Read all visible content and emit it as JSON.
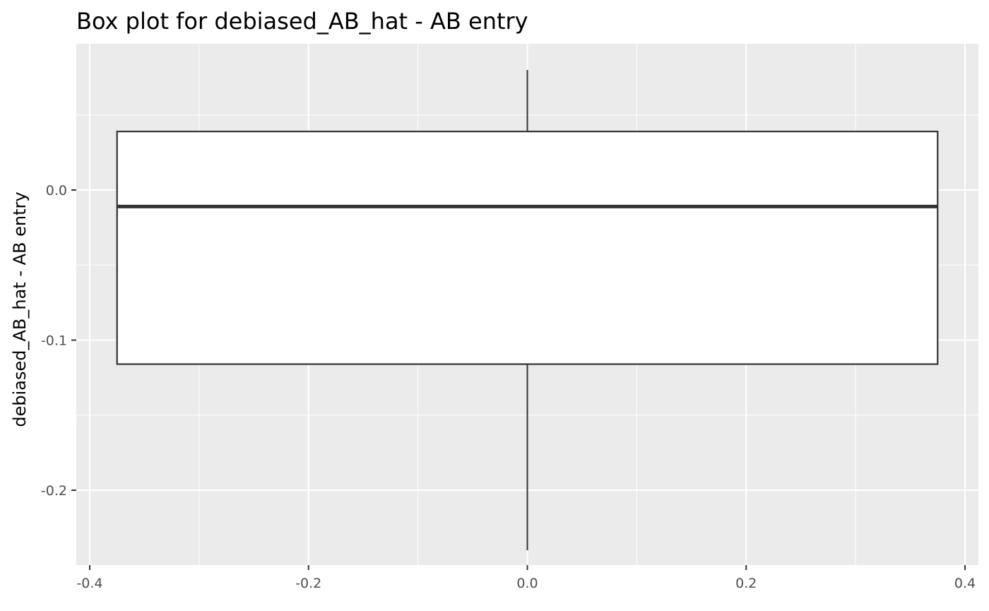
{
  "chart_data": {
    "type": "box",
    "title": "Box plot for debiased_AB_hat - AB entry",
    "xlabel": "",
    "ylabel": "debiased_AB_hat - AB entry",
    "xlim": [
      -0.4,
      0.4
    ],
    "ylim": [
      -0.25,
      0.095
    ],
    "x_ticks": [
      -0.4,
      -0.2,
      0.0,
      0.2,
      0.4
    ],
    "x_tick_labels": [
      "-0.4",
      "-0.2",
      "0.0",
      "0.2",
      "0.4"
    ],
    "y_ticks": [
      0.0,
      -0.1,
      -0.2
    ],
    "y_tick_labels": [
      "0.0",
      "-0.1",
      "-0.2"
    ],
    "grid": true,
    "box": {
      "x_center": 0.0,
      "x_min": -0.375,
      "x_max": 0.375,
      "whisker_low": -0.24,
      "q1": -0.116,
      "median": -0.011,
      "q3": 0.039,
      "whisker_high": 0.08
    },
    "colors": {
      "panel_background": "#EBEBEB",
      "grid": "#FFFFFF",
      "box_fill": "#FFFFFF",
      "box_line": "#333333",
      "tick_text": "#4D4D4D"
    }
  }
}
